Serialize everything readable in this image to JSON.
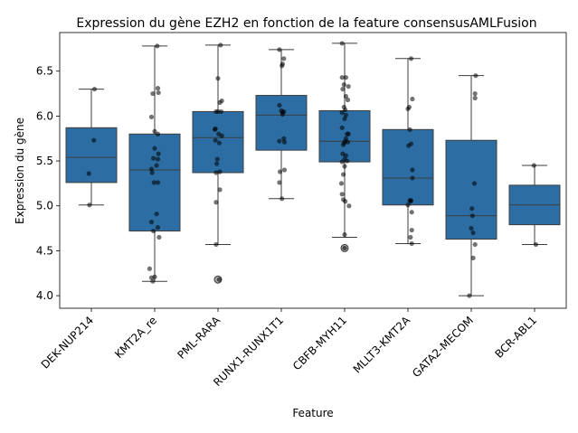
{
  "chart_data": {
    "type": "box",
    "title": "Expression du gène EZH2 en fonction de la feature consensusAMLFusion",
    "xlabel": "Feature",
    "ylabel": "Expression du gène",
    "ylim": [
      3.86,
      6.93
    ],
    "yticks": [
      "4.0",
      "4.5",
      "5.0",
      "5.5",
      "6.0",
      "6.5"
    ],
    "grid": false,
    "box_color": "#2c6ea3",
    "point_color": "#000000",
    "categories": [
      "DEK-NUP214",
      "KMT2A_re",
      "PML-RARA",
      "RUNX1-RUNX1T1",
      "CBFB-MYH11",
      "MLLT3-KMT2A",
      "GATA2-MECOM",
      "BCR-ABL1"
    ],
    "boxes": [
      {
        "q1": 5.26,
        "median": 5.54,
        "q3": 5.87,
        "whisker_low": 5.01,
        "whisker_high": 6.3,
        "outliers": []
      },
      {
        "q1": 4.72,
        "median": 5.4,
        "q3": 5.8,
        "whisker_low": 4.16,
        "whisker_high": 6.78,
        "outliers": []
      },
      {
        "q1": 5.37,
        "median": 5.76,
        "q3": 6.05,
        "whisker_low": 4.57,
        "whisker_high": 6.79,
        "outliers": [
          4.18
        ]
      },
      {
        "q1": 5.62,
        "median": 6.01,
        "q3": 6.23,
        "whisker_low": 5.08,
        "whisker_high": 6.74,
        "outliers": []
      },
      {
        "q1": 5.49,
        "median": 5.72,
        "q3": 6.06,
        "whisker_low": 4.65,
        "whisker_high": 6.81,
        "outliers": [
          4.53
        ]
      },
      {
        "q1": 5.01,
        "median": 5.31,
        "q3": 5.85,
        "whisker_low": 4.58,
        "whisker_high": 6.64,
        "outliers": []
      },
      {
        "q1": 4.63,
        "median": 4.89,
        "q3": 5.73,
        "whisker_low": 4.0,
        "whisker_high": 6.45,
        "outliers": []
      },
      {
        "q1": 4.79,
        "median": 5.01,
        "q3": 5.23,
        "whisker_low": 4.57,
        "whisker_high": 5.45,
        "outliers": []
      }
    ],
    "points": [
      [
        [
          0.05,
          6.3
        ],
        [
          0.04,
          5.73
        ],
        [
          -0.04,
          5.36
        ],
        [
          -0.03,
          5.01
        ]
      ],
      [
        [
          0.04,
          6.78
        ],
        [
          0.05,
          6.31
        ],
        [
          -0.03,
          6.25
        ],
        [
          0.06,
          6.26
        ],
        [
          -0.05,
          5.99
        ],
        [
          0.0,
          5.83
        ],
        [
          0.05,
          5.8
        ],
        [
          0.06,
          5.58
        ],
        [
          0.05,
          5.52
        ],
        [
          0.0,
          5.64
        ],
        [
          -0.02,
          5.53
        ],
        [
          -0.05,
          5.41
        ],
        [
          0.03,
          5.45
        ],
        [
          -0.04,
          5.37
        ],
        [
          0.05,
          5.26
        ],
        [
          -0.01,
          5.26
        ],
        [
          0.03,
          4.91
        ],
        [
          -0.05,
          4.82
        ],
        [
          0.05,
          4.76
        ],
        [
          -0.02,
          4.72
        ],
        [
          0.07,
          4.65
        ],
        [
          -0.08,
          4.3
        ],
        [
          -0.05,
          4.2
        ],
        [
          0.0,
          4.21
        ],
        [
          -0.03,
          4.16
        ]
      ],
      [
        [
          0.04,
          6.79
        ],
        [
          0.0,
          6.42
        ],
        [
          0.06,
          6.17
        ],
        [
          0.03,
          6.15
        ],
        [
          0.0,
          6.05
        ],
        [
          -0.03,
          6.05
        ],
        [
          0.05,
          6.05
        ],
        [
          -0.04,
          5.86
        ],
        [
          -0.05,
          5.85
        ],
        [
          0.01,
          5.8
        ],
        [
          0.06,
          5.78
        ],
        [
          -0.04,
          5.73
        ],
        [
          0.02,
          5.7
        ],
        [
          -0.01,
          5.52
        ],
        [
          -0.02,
          5.47
        ],
        [
          0.03,
          5.38
        ],
        [
          -0.03,
          5.37
        ],
        [
          0.03,
          5.18
        ],
        [
          -0.03,
          5.04
        ],
        [
          -0.03,
          4.57
        ],
        [
          0.02,
          4.18
        ]
      ],
      [
        [
          -0.03,
          6.74
        ],
        [
          0.04,
          6.64
        ],
        [
          0.02,
          6.58
        ],
        [
          0.01,
          6.56
        ],
        [
          -0.03,
          6.12
        ],
        [
          0.04,
          6.05
        ],
        [
          0.02,
          6.04
        ],
        [
          0.0,
          6.06
        ],
        [
          0.02,
          6.02
        ],
        [
          0.04,
          5.75
        ],
        [
          -0.03,
          5.72
        ],
        [
          0.05,
          5.71
        ],
        [
          0.05,
          5.4
        ],
        [
          -0.02,
          5.38
        ],
        [
          -0.03,
          5.26
        ],
        [
          0.01,
          5.08
        ]
      ],
      [
        [
          -0.04,
          6.81
        ],
        [
          -0.04,
          6.43
        ],
        [
          0.02,
          6.43
        ],
        [
          -0.01,
          6.35
        ],
        [
          0.06,
          6.33
        ],
        [
          -0.03,
          6.3
        ],
        [
          0.02,
          6.22
        ],
        [
          0.05,
          6.18
        ],
        [
          -0.01,
          6.1
        ],
        [
          0.01,
          6.07
        ],
        [
          -0.04,
          6.04
        ],
        [
          0.02,
          6.01
        ],
        [
          0.0,
          5.97
        ],
        [
          -0.04,
          5.87
        ],
        [
          0.06,
          5.8
        ],
        [
          0.04,
          5.8
        ],
        [
          0.02,
          5.75
        ],
        [
          0.01,
          5.72
        ],
        [
          0.05,
          5.71
        ],
        [
          -0.01,
          5.7
        ],
        [
          -0.02,
          5.68
        ],
        [
          -0.03,
          5.58
        ],
        [
          0.02,
          5.56
        ],
        [
          0.0,
          5.52
        ],
        [
          0.04,
          5.5
        ],
        [
          -0.04,
          5.49
        ],
        [
          0.0,
          5.44
        ],
        [
          -0.02,
          5.35
        ],
        [
          -0.05,
          5.25
        ],
        [
          -0.04,
          5.13
        ],
        [
          -0.02,
          5.07
        ],
        [
          0.01,
          5.05
        ],
        [
          0.07,
          5.0
        ],
        [
          0.0,
          4.68
        ],
        [
          0.0,
          4.53
        ]
      ],
      [
        [
          0.05,
          6.64
        ],
        [
          0.07,
          6.19
        ],
        [
          0.02,
          6.1
        ],
        [
          0.0,
          6.08
        ],
        [
          0.03,
          5.85
        ],
        [
          0.05,
          5.69
        ],
        [
          0.01,
          5.67
        ],
        [
          0.07,
          5.4
        ],
        [
          0.07,
          5.31
        ],
        [
          0.05,
          5.06
        ],
        [
          0.03,
          5.06
        ],
        [
          0.04,
          5.05
        ],
        [
          0.0,
          5.01
        ],
        [
          0.06,
          4.93
        ],
        [
          0.06,
          4.73
        ],
        [
          0.04,
          4.65
        ],
        [
          0.06,
          4.58
        ]
      ],
      [
        [
          0.07,
          6.45
        ],
        [
          0.06,
          6.25
        ],
        [
          0.06,
          6.2
        ],
        [
          0.05,
          5.25
        ],
        [
          0.01,
          4.97
        ],
        [
          0.02,
          4.89
        ],
        [
          0.0,
          4.75
        ],
        [
          0.03,
          4.7
        ],
        [
          0.06,
          4.57
        ],
        [
          0.03,
          4.42
        ],
        [
          -0.03,
          4.0
        ]
      ],
      [
        [
          -0.01,
          5.45
        ],
        [
          0.02,
          4.57
        ]
      ]
    ]
  }
}
